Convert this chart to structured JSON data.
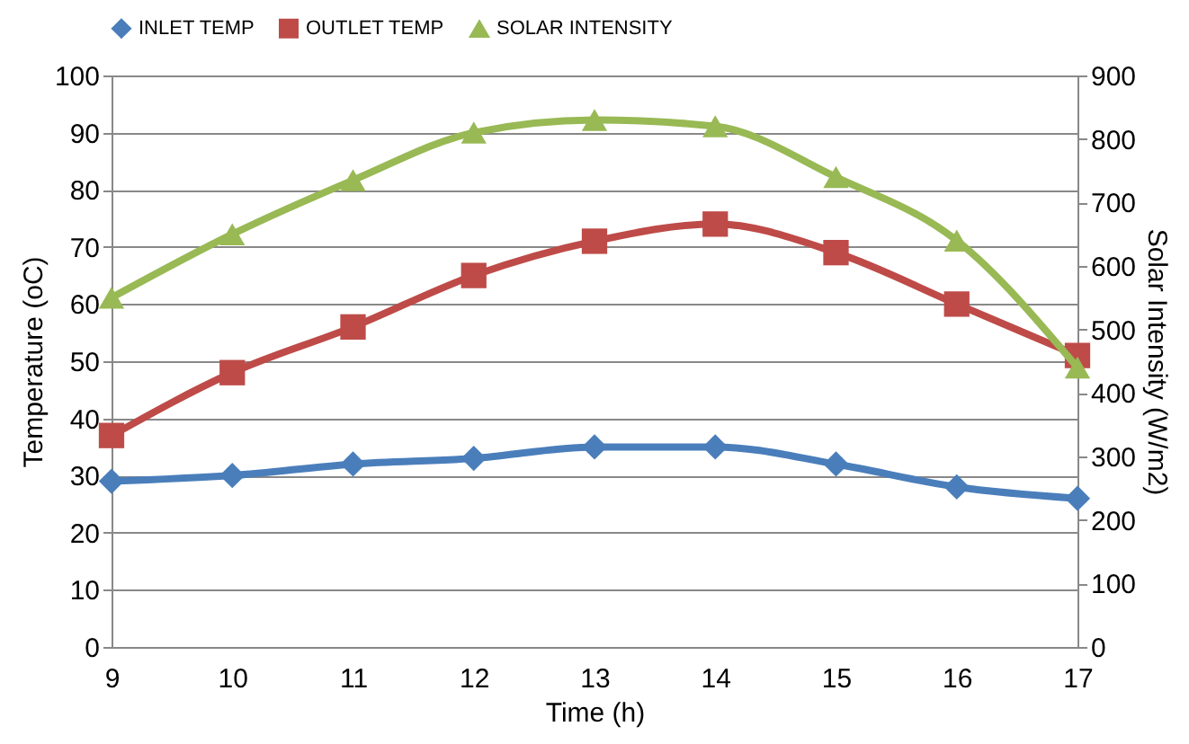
{
  "chart_data": {
    "type": "line",
    "xlabel": "Time (h)",
    "ylabel": "Temperature (oC)",
    "y2label": "Solar Intensity (W/m2)",
    "categories": [
      "9",
      "10",
      "11",
      "12",
      "13",
      "14",
      "15",
      "16",
      "17"
    ],
    "series": [
      {
        "name": "INLET TEMP",
        "color": "#4a7ebb",
        "marker": "diamond",
        "values": [
          29,
          30,
          32,
          33,
          35,
          35,
          32,
          28,
          26
        ]
      },
      {
        "name": "OUTLET TEMP",
        "color": "#be4b48",
        "marker": "square",
        "values": [
          37,
          48,
          56,
          65,
          71,
          74,
          69,
          60,
          51
        ]
      },
      {
        "name": "SOLAR INTENSITY",
        "color": "#98b954",
        "marker": "triangle",
        "axis": "y2",
        "values": [
          550,
          650,
          735,
          810,
          830,
          820,
          740,
          640,
          440
        ]
      }
    ],
    "ylim": [
      0,
      100
    ],
    "yticks": [
      0,
      10,
      20,
      30,
      40,
      50,
      60,
      70,
      80,
      90,
      100
    ],
    "y2lim": [
      0,
      900
    ],
    "y2ticks": [
      0,
      100,
      200,
      300,
      400,
      500,
      600,
      700,
      800,
      900
    ],
    "grid": "y",
    "legend": "top",
    "line_style": "solid"
  }
}
